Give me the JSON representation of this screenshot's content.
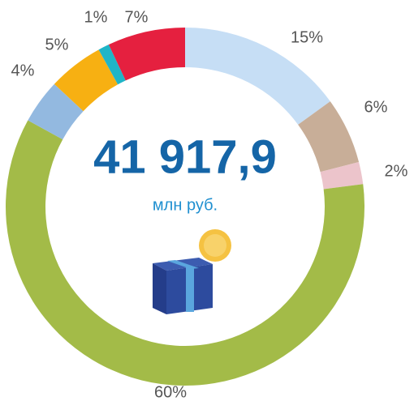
{
  "chart_data": {
    "type": "donut",
    "values": [
      15,
      6,
      2,
      60,
      4,
      5,
      1,
      7
    ],
    "value_labels": [
      "15%",
      "6%",
      "2%",
      "60%",
      "4%",
      "5%",
      "1%",
      "7%"
    ],
    "colors": [
      "#c6def5",
      "#c8ae98",
      "#ecc4cb",
      "#a3bb48",
      "#93b9e0",
      "#f7b012",
      "#1fb5c7",
      "#e5203f"
    ],
    "center_value": "41 917,9",
    "center_label": "млн руб."
  }
}
